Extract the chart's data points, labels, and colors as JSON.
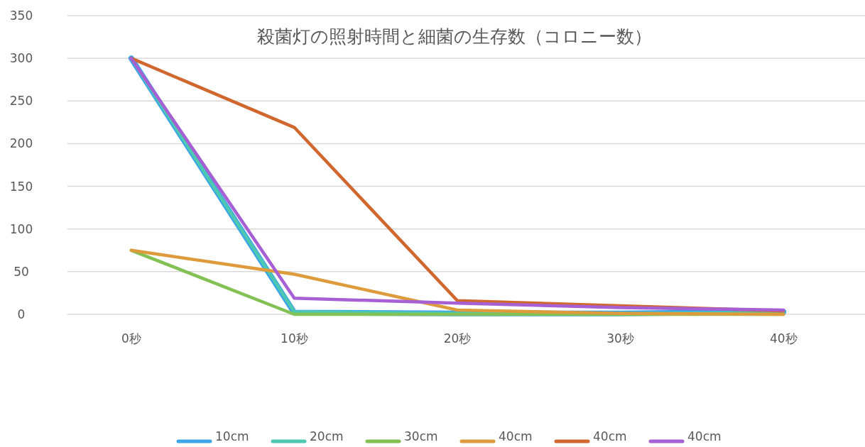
{
  "chart_data": {
    "type": "line",
    "title": "殺菌灯の照射時間と細菌の生存数（コロニー数）",
    "categories": [
      "0秒",
      "10秒",
      "20秒",
      "30秒",
      "40秒"
    ],
    "series": [
      {
        "name": "10cm",
        "color": "#3ca5e8",
        "values": [
          300,
          2,
          1,
          1,
          3
        ]
      },
      {
        "name": "20cm",
        "color": "#4cc9b0",
        "values": [
          300,
          3,
          1,
          1,
          2
        ]
      },
      {
        "name": "30cm",
        "color": "#83c154",
        "values": [
          75,
          0,
          0,
          0,
          0
        ]
      },
      {
        "name": "40cm",
        "color": "#dd9b3c",
        "values": [
          75,
          47,
          5,
          1,
          0
        ]
      },
      {
        "name": "40cm",
        "color": "#d0672e",
        "values": [
          300,
          219,
          16,
          10,
          4
        ]
      },
      {
        "name": "40cm",
        "color": "#a75fd4",
        "values": [
          300,
          19,
          13,
          8,
          5
        ]
      }
    ],
    "ylim": [
      0,
      350
    ],
    "yticks": [
      0,
      50,
      100,
      150,
      200,
      250,
      300,
      350
    ],
    "grid": "y",
    "legend": "bottom",
    "marker": "none",
    "line_style": "solid"
  }
}
